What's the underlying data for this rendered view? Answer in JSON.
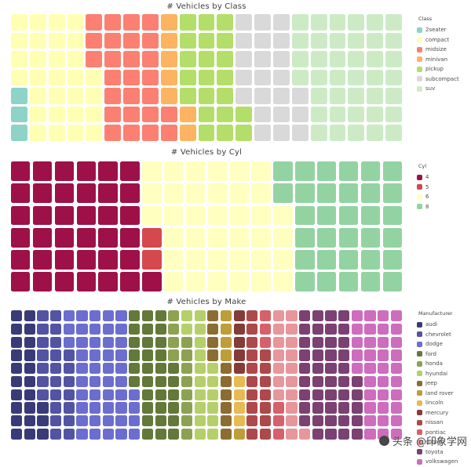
{
  "colors": {
    "background": "#ffffff",
    "title_text": "#3f3f3f",
    "legend_text": "#4d4d4d"
  },
  "chart_data": [
    {
      "type": "waffle",
      "title": "# Vehicles by Class",
      "legend_title": "Class",
      "legend_position": "right",
      "rows": 7,
      "cols": 21,
      "categories": [
        "2seater",
        "compact",
        "midsize",
        "minivan",
        "pickup",
        "subcompact",
        "suv"
      ],
      "values": [
        5,
        47,
        41,
        11,
        33,
        35,
        62
      ],
      "swatch_colors": [
        "#8dd3c7",
        "#ffffb3",
        "#fb8072",
        "#fdb462",
        "#b3de69",
        "#d9d9d9",
        "#ccebc5"
      ]
    },
    {
      "type": "waffle",
      "title": "# Vehicles by Cyl",
      "legend_title": "Cyl",
      "legend_position": "right",
      "rows": 6,
      "cols": 18,
      "categories": [
        "4",
        "5",
        "6",
        "8"
      ],
      "values": [
        81,
        4,
        79,
        70
      ],
      "swatch_colors": [
        "#9e1148",
        "#d4494e",
        "#ffffbf",
        "#93d3a2"
      ]
    },
    {
      "type": "waffle",
      "title": "# Vehicles by Make",
      "legend_title": "Manufacturer",
      "legend_position": "right",
      "rows": 10,
      "cols": 30,
      "categories": [
        "audi",
        "chevrolet",
        "dodge",
        "ford",
        "honda",
        "hyundai",
        "jeep",
        "land rover",
        "lincoln",
        "mercury",
        "nissan",
        "pontiac",
        "subaru",
        "toyota",
        "volkswagen"
      ],
      "values": [
        18,
        19,
        37,
        25,
        9,
        14,
        8,
        4,
        3,
        4,
        13,
        5,
        14,
        34,
        27
      ],
      "swatch_colors": [
        "#393b79",
        "#5254a3",
        "#6b6ecf",
        "#637939",
        "#8ca252",
        "#b5cf6b",
        "#8c6d31",
        "#bd9e39",
        "#e7ba52",
        "#843c39",
        "#ad494a",
        "#d6616b",
        "#e7969c",
        "#7b4173",
        "#ce6dbd"
      ]
    }
  ],
  "watermark": {
    "icon": "toutiao-logo",
    "text": "头条 @印象学网"
  }
}
